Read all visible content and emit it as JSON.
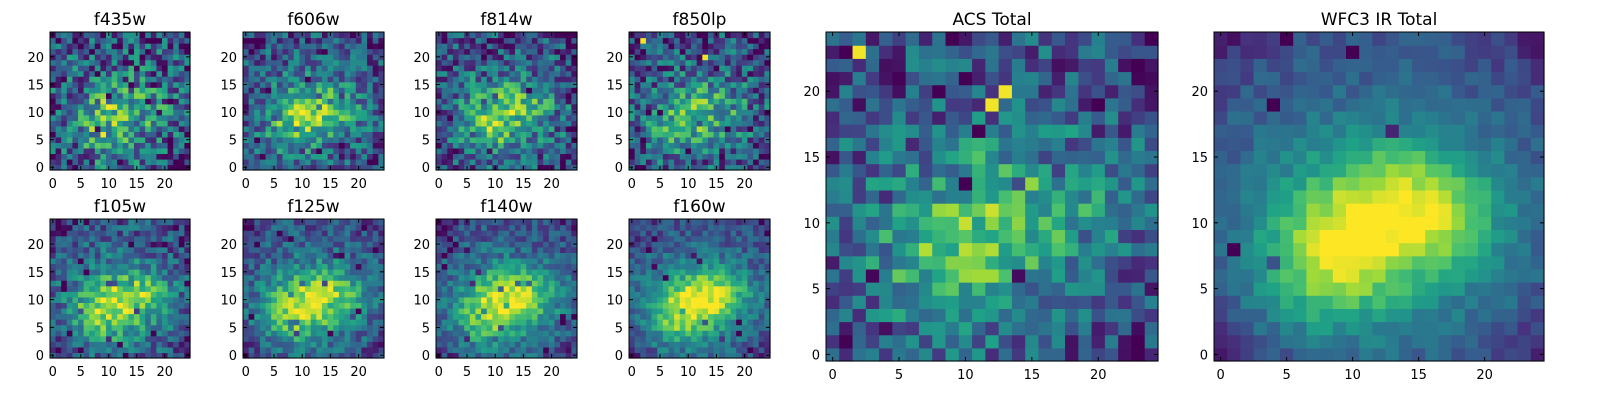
{
  "colormap": "viridis",
  "colors": {
    "viridis": [
      "#440154",
      "#46327e",
      "#365c8d",
      "#277f8e",
      "#1fa187",
      "#4ac16d",
      "#a0da39",
      "#fde725"
    ],
    "axis": "#000000",
    "background": "#ffffff"
  },
  "chart_data": [
    {
      "type": "heatmap",
      "title": "f435w",
      "noise": 0.42,
      "blob": 0.45,
      "hotspots": [],
      "xticks": [
        0,
        5,
        10,
        15,
        20
      ],
      "yticks": [
        0,
        5,
        10,
        15,
        20
      ],
      "xlim": [
        0,
        24
      ],
      "ylim": [
        0,
        24
      ],
      "grid": false
    },
    {
      "type": "heatmap",
      "title": "f606w",
      "noise": 0.32,
      "blob": 0.55,
      "hotspots": [],
      "xticks": [
        0,
        5,
        10,
        15,
        20
      ],
      "yticks": [
        0,
        5,
        10,
        15,
        20
      ],
      "xlim": [
        0,
        24
      ],
      "ylim": [
        0,
        24
      ],
      "grid": false
    },
    {
      "type": "heatmap",
      "title": "f814w",
      "noise": 0.34,
      "blob": 0.55,
      "hotspots": [],
      "xticks": [
        0,
        5,
        10,
        15,
        20
      ],
      "yticks": [
        0,
        5,
        10,
        15,
        20
      ],
      "xlim": [
        0,
        24
      ],
      "ylim": [
        0,
        24
      ],
      "grid": false
    },
    {
      "type": "heatmap",
      "title": "f850lp",
      "noise": 0.36,
      "blob": 0.45,
      "hotspots": [
        [
          13,
          20
        ],
        [
          2,
          23
        ]
      ],
      "xticks": [
        0,
        5,
        10,
        15,
        20
      ],
      "yticks": [
        0,
        5,
        10,
        15,
        20
      ],
      "xlim": [
        0,
        24
      ],
      "ylim": [
        0,
        24
      ],
      "grid": false
    },
    {
      "type": "heatmap",
      "title": "ACS Total",
      "noise": 0.3,
      "blob": 0.55,
      "hotspots": [
        [
          12,
          19
        ],
        [
          13,
          20
        ],
        [
          2,
          23
        ]
      ],
      "xticks": [
        0,
        5,
        10,
        15,
        20
      ],
      "yticks": [
        0,
        5,
        10,
        15,
        20
      ],
      "xlim": [
        0,
        24
      ],
      "ylim": [
        0,
        24
      ],
      "grid": false
    },
    {
      "type": "heatmap",
      "title": "f105w",
      "noise": 0.26,
      "blob": 0.75,
      "hotspots": [],
      "xticks": [
        0,
        5,
        10,
        15,
        20
      ],
      "yticks": [
        0,
        5,
        10,
        15,
        20
      ],
      "xlim": [
        0,
        24
      ],
      "ylim": [
        0,
        24
      ],
      "grid": false
    },
    {
      "type": "heatmap",
      "title": "f125w",
      "noise": 0.22,
      "blob": 0.8,
      "hotspots": [],
      "xticks": [
        0,
        5,
        10,
        15,
        20
      ],
      "yticks": [
        0,
        5,
        10,
        15,
        20
      ],
      "xlim": [
        0,
        24
      ],
      "ylim": [
        0,
        24
      ],
      "grid": false
    },
    {
      "type": "heatmap",
      "title": "f140w",
      "noise": 0.2,
      "blob": 0.85,
      "hotspots": [],
      "xticks": [
        0,
        5,
        10,
        15,
        20
      ],
      "yticks": [
        0,
        5,
        10,
        15,
        20
      ],
      "xlim": [
        0,
        24
      ],
      "ylim": [
        0,
        24
      ],
      "grid": false
    },
    {
      "type": "heatmap",
      "title": "f160w",
      "noise": 0.18,
      "blob": 0.9,
      "hotspots": [],
      "xticks": [
        0,
        5,
        10,
        15,
        20
      ],
      "yticks": [
        0,
        5,
        10,
        15,
        20
      ],
      "xlim": [
        0,
        24
      ],
      "ylim": [
        0,
        24
      ],
      "grid": false
    },
    {
      "type": "heatmap",
      "title": "WFC3 IR Total",
      "noise": 0.1,
      "blob": 1.0,
      "hotspots": [],
      "xticks": [
        0,
        5,
        10,
        15,
        20
      ],
      "yticks": [
        0,
        5,
        10,
        15,
        20
      ],
      "xlim": [
        0,
        24
      ],
      "ylim": [
        0,
        24
      ],
      "grid": false
    }
  ]
}
